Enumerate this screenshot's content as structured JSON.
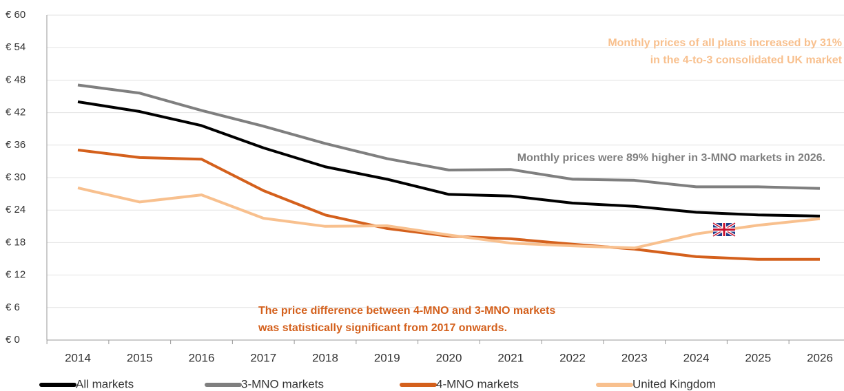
{
  "chart_data": {
    "type": "line",
    "categories": [
      "2014",
      "2015",
      "2016",
      "2017",
      "2018",
      "2019",
      "2020",
      "2021",
      "2022",
      "2023",
      "2024",
      "2025",
      "2026"
    ],
    "series": [
      {
        "name": "All markets",
        "color": "#000000",
        "values": [
          44.0,
          42.2,
          39.6,
          35.5,
          32.0,
          29.7,
          26.9,
          26.6,
          25.3,
          24.7,
          23.6,
          23.1,
          22.9
        ]
      },
      {
        "name": "3-MNO markets",
        "color": "#7f7f7f",
        "values": [
          47.1,
          45.6,
          42.4,
          39.5,
          36.3,
          33.5,
          31.4,
          31.5,
          29.7,
          29.5,
          28.3,
          28.3,
          28.0
        ]
      },
      {
        "name": "4-MNO markets",
        "color": "#d4601c",
        "values": [
          35.1,
          33.7,
          33.4,
          27.6,
          23.1,
          20.6,
          19.2,
          18.7,
          17.7,
          16.8,
          15.4,
          14.9,
          14.9
        ]
      },
      {
        "name": "United Kingdom",
        "color": "#f8c08e",
        "values": [
          28.1,
          25.5,
          26.8,
          22.5,
          21.0,
          21.1,
          19.4,
          17.9,
          17.4,
          17.0,
          19.6,
          21.2,
          22.4
        ]
      }
    ],
    "ylim": [
      0,
      60
    ],
    "yticks": [
      {
        "value": 0,
        "label": "€ 0"
      },
      {
        "value": 6,
        "label": "€ 6"
      },
      {
        "value": 12,
        "label": "€ 12"
      },
      {
        "value": 18,
        "label": "€ 18"
      },
      {
        "value": 24,
        "label": "€ 24"
      },
      {
        "value": 30,
        "label": "€ 30"
      },
      {
        "value": 36,
        "label": "€ 36"
      },
      {
        "value": 42,
        "label": "€ 42"
      },
      {
        "value": 48,
        "label": "€ 48"
      },
      {
        "value": 54,
        "label": "€ 54"
      },
      {
        "value": 60,
        "label": "€ 60"
      }
    ],
    "grid": true,
    "legend": "bottom",
    "annotations": [
      {
        "text": "Monthly prices of all plans increased by 31%",
        "color": "#f8c08e"
      },
      {
        "text": "in the 4-to-3 consolidated UK market",
        "color": "#f8c08e"
      },
      {
        "text": "Monthly prices were 89% higher in 3-MNO markets in 2026.",
        "color": "#7f7f7f"
      },
      {
        "text": "The price difference between 4-MNO and 3-MNO markets",
        "color": "#d4601c"
      },
      {
        "text": "was statistically significant  from 2017 onwards.",
        "color": "#d4601c"
      }
    ]
  }
}
